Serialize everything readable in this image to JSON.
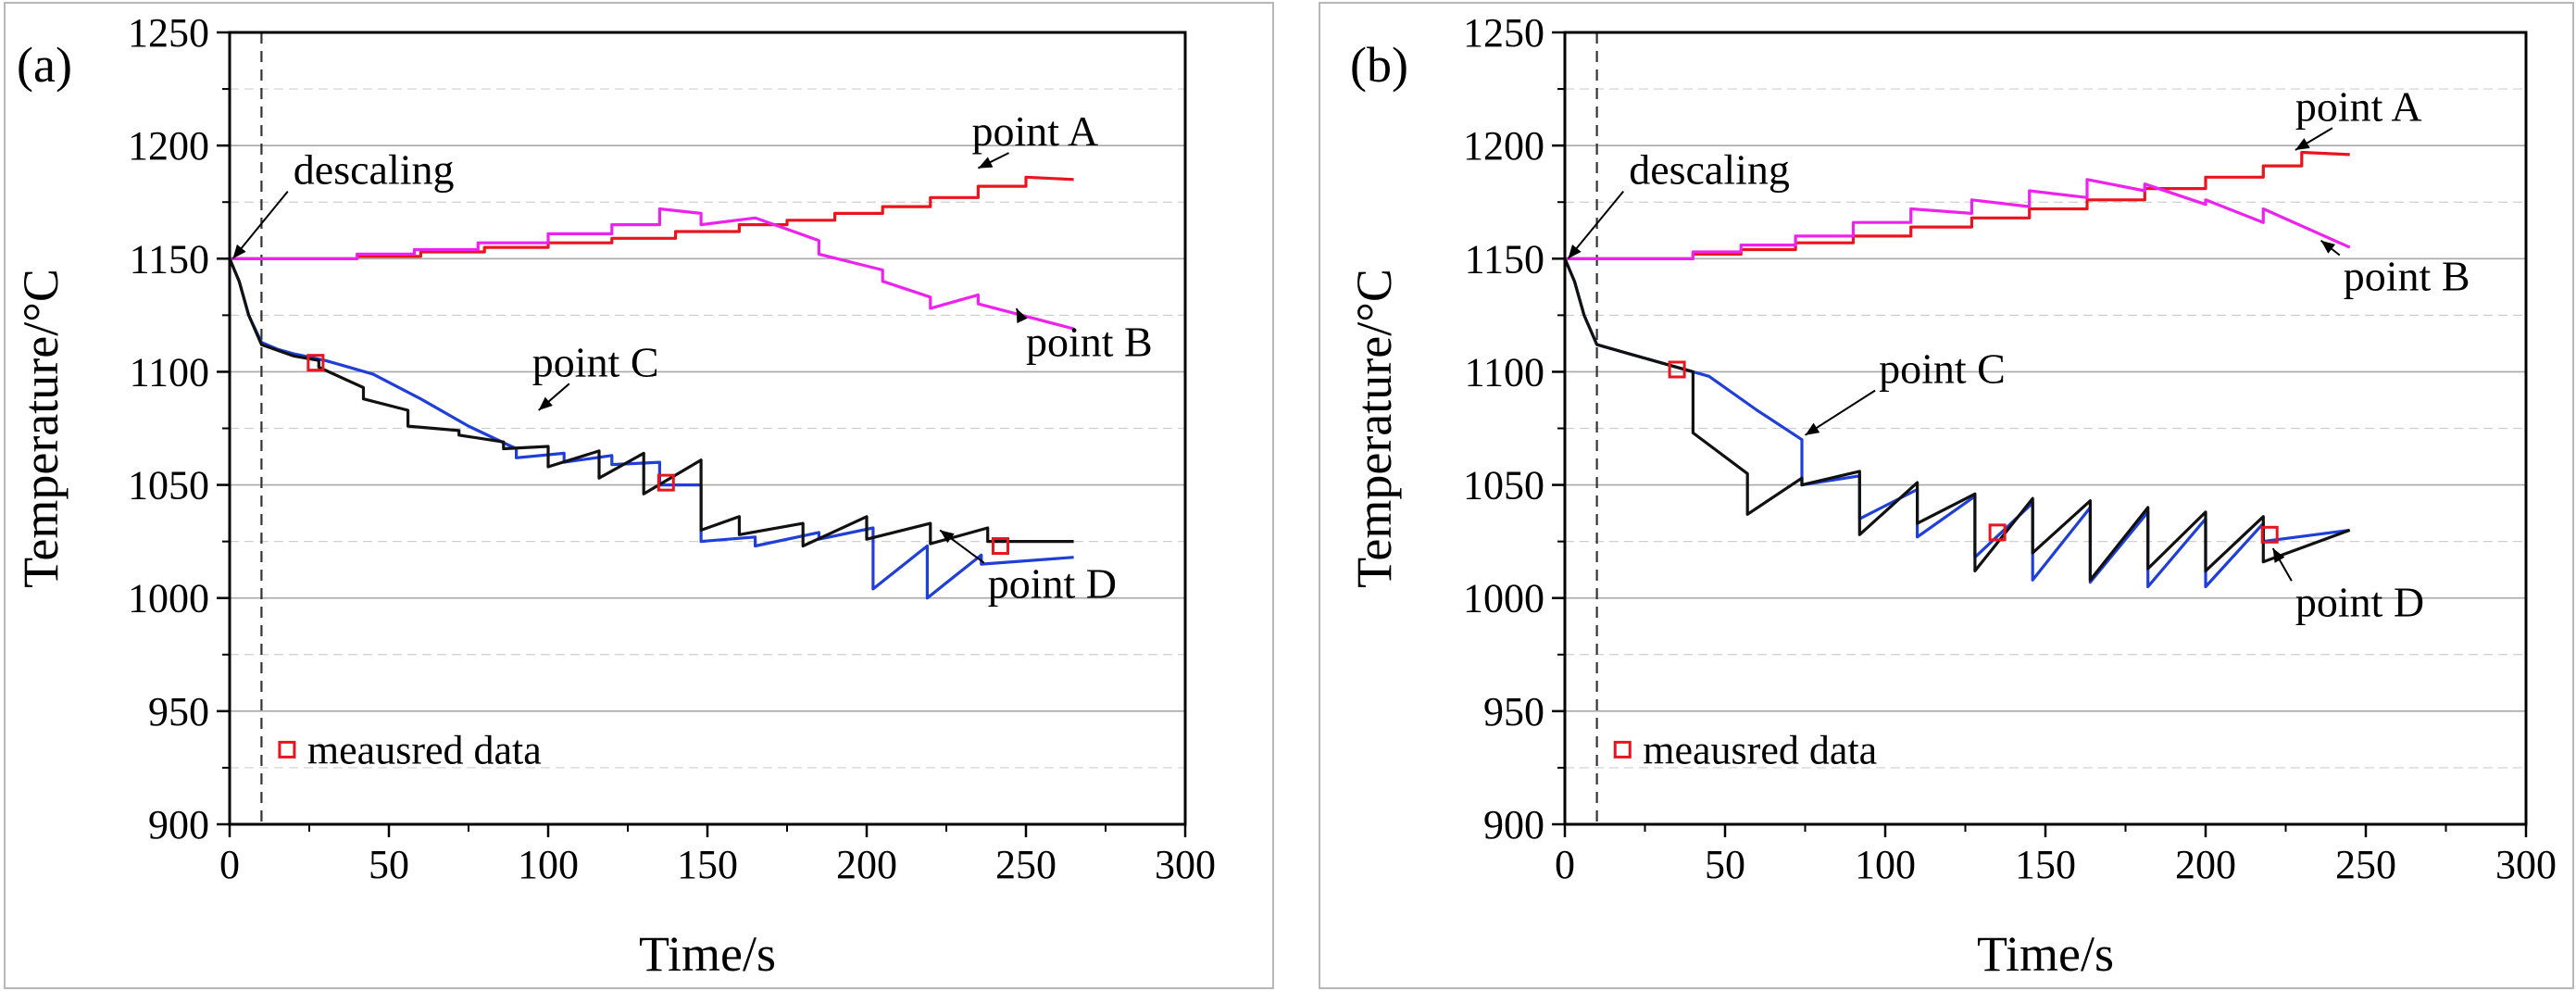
{
  "chart_data": [
    {
      "type": "line",
      "panel_label": "(a)",
      "xlabel": "Time/s",
      "ylabel": "Temperature/°C",
      "xlim": [
        0,
        300
      ],
      "ylim": [
        900,
        1250
      ],
      "xticks": [
        0,
        50,
        100,
        150,
        200,
        250,
        300
      ],
      "yticks": [
        900,
        950,
        1000,
        1050,
        1100,
        1150,
        1200,
        1250
      ],
      "grid": "horizontal",
      "descaling_time": 10,
      "annotations": [
        {
          "text": "descaling",
          "x": 1,
          "y": 1150,
          "tx": 20,
          "ty": 1183
        },
        {
          "text": "point A",
          "x": 235,
          "y": 1190,
          "tx": 233,
          "ty": 1200
        },
        {
          "text": "point B",
          "x": 247,
          "y": 1128,
          "tx": 250,
          "ty": 1107
        },
        {
          "text": "point C",
          "x": 97,
          "y": 1083,
          "tx": 95,
          "ty": 1098
        },
        {
          "text": "point D",
          "x": 223,
          "y": 1030,
          "tx": 238,
          "ty": 1000
        }
      ],
      "legend": {
        "label": "meausred data",
        "position": "lower-left"
      },
      "series": [
        {
          "name": "point A",
          "color": "#e8141e",
          "x": [
            0,
            40,
            40,
            60,
            60,
            80,
            80,
            100,
            100,
            120,
            120,
            140,
            140,
            160,
            160,
            175,
            175,
            190,
            190,
            205,
            205,
            220,
            220,
            235,
            235,
            250,
            250,
            265
          ],
          "y": [
            1150,
            1150,
            1151,
            1151,
            1153,
            1153,
            1155,
            1155,
            1157,
            1157,
            1159,
            1159,
            1162,
            1162,
            1165,
            1165,
            1167,
            1167,
            1170,
            1170,
            1173,
            1173,
            1177,
            1177,
            1182,
            1182,
            1186,
            1185
          ]
        },
        {
          "name": "point B",
          "color": "#ee22ee",
          "x": [
            0,
            40,
            40,
            58,
            58,
            78,
            78,
            100,
            100,
            120,
            120,
            135,
            135,
            148,
            148,
            165,
            185,
            185,
            205,
            205,
            220,
            220,
            235,
            235,
            265
          ],
          "y": [
            1150,
            1150,
            1152,
            1152,
            1154,
            1154,
            1157,
            1157,
            1161,
            1161,
            1165,
            1165,
            1172,
            1170,
            1165,
            1168,
            1158,
            1152,
            1145,
            1140,
            1133,
            1128,
            1134,
            1130,
            1119
          ]
        },
        {
          "name": "point C",
          "color": "#1f3fd8",
          "x": [
            0,
            3,
            6,
            10,
            15,
            20,
            30,
            45,
            60,
            75,
            90,
            90,
            105,
            105,
            120,
            120,
            135,
            135,
            148,
            148,
            165,
            165,
            185,
            185,
            202,
            202,
            219,
            219,
            236,
            236,
            265
          ],
          "y": [
            1150,
            1140,
            1125,
            1113,
            1110,
            1108,
            1105,
            1099,
            1088,
            1076,
            1066,
            1062,
            1064,
            1060,
            1063,
            1059,
            1060,
            1050,
            1050,
            1025,
            1027,
            1023,
            1029,
            1026,
            1031,
            1004,
            1023,
            1000,
            1019,
            1015,
            1018
          ]
        },
        {
          "name": "point D",
          "color": "#111111",
          "x": [
            0,
            3,
            6,
            10,
            20,
            28,
            28,
            42,
            42,
            56,
            56,
            72,
            72,
            86,
            86,
            100,
            100,
            116,
            116,
            130,
            130,
            148,
            148,
            160,
            160,
            180,
            180,
            200,
            200,
            220,
            220,
            238,
            238,
            265
          ],
          "y": [
            1150,
            1140,
            1125,
            1112,
            1107,
            1105,
            1102,
            1093,
            1088,
            1083,
            1076,
            1074,
            1072,
            1069,
            1066,
            1067,
            1058,
            1065,
            1053,
            1064,
            1046,
            1061,
            1030,
            1036,
            1028,
            1033,
            1023,
            1036,
            1026,
            1033,
            1024,
            1031,
            1025,
            1025
          ]
        }
      ],
      "measured": {
        "x": [
          27,
          137,
          242
        ],
        "y": [
          1104,
          1051,
          1023
        ]
      }
    },
    {
      "type": "line",
      "panel_label": "(b)",
      "xlabel": "Time/s",
      "ylabel": "Temperature/°C",
      "xlim": [
        0,
        300
      ],
      "ylim": [
        900,
        1250
      ],
      "xticks": [
        0,
        50,
        100,
        150,
        200,
        250,
        300
      ],
      "yticks": [
        900,
        950,
        1000,
        1050,
        1100,
        1150,
        1200,
        1250
      ],
      "grid": "horizontal",
      "descaling_time": 10,
      "annotations": [
        {
          "text": "descaling",
          "x": 1,
          "y": 1150,
          "tx": 20,
          "ty": 1183
        },
        {
          "text": "point A",
          "x": 228,
          "y": 1198,
          "tx": 228,
          "ty": 1211
        },
        {
          "text": "point B",
          "x": 236,
          "y": 1158,
          "tx": 243,
          "ty": 1136
        },
        {
          "text": "point C",
          "x": 75,
          "y": 1072,
          "tx": 98,
          "ty": 1095
        },
        {
          "text": "point D",
          "x": 221,
          "y": 1022,
          "tx": 228,
          "ty": 992
        }
      ],
      "legend": {
        "label": "meausred data",
        "position": "lower-left"
      },
      "series": [
        {
          "name": "point A",
          "color": "#e8141e",
          "x": [
            0,
            40,
            40,
            55,
            55,
            72,
            72,
            90,
            90,
            108,
            108,
            127,
            127,
            145,
            145,
            163,
            163,
            181,
            181,
            200,
            200,
            218,
            218,
            230,
            230,
            245
          ],
          "y": [
            1150,
            1150,
            1152,
            1152,
            1154,
            1154,
            1157,
            1157,
            1160,
            1160,
            1164,
            1164,
            1168,
            1168,
            1172,
            1172,
            1176,
            1176,
            1181,
            1181,
            1186,
            1186,
            1191,
            1191,
            1197,
            1196
          ]
        },
        {
          "name": "point B",
          "color": "#ee22ee",
          "x": [
            0,
            40,
            40,
            55,
            55,
            72,
            72,
            90,
            90,
            108,
            108,
            127,
            127,
            145,
            145,
            163,
            163,
            181,
            181,
            200,
            200,
            218,
            218,
            245
          ],
          "y": [
            1150,
            1150,
            1153,
            1153,
            1156,
            1156,
            1160,
            1160,
            1166,
            1166,
            1172,
            1170,
            1176,
            1173,
            1180,
            1177,
            1185,
            1180,
            1183,
            1174,
            1176,
            1166,
            1172,
            1155
          ]
        },
        {
          "name": "point C",
          "color": "#1f3fd8",
          "x": [
            0,
            3,
            6,
            10,
            20,
            30,
            45,
            60,
            74,
            74,
            92,
            92,
            110,
            110,
            128,
            128,
            146,
            146,
            164,
            164,
            182,
            182,
            200,
            200,
            218,
            218,
            245
          ],
          "y": [
            1150,
            1140,
            1125,
            1112,
            1108,
            1104,
            1098,
            1083,
            1070,
            1050,
            1054,
            1035,
            1048,
            1027,
            1045,
            1018,
            1042,
            1008,
            1040,
            1007,
            1038,
            1005,
            1035,
            1005,
            1033,
            1025,
            1030
          ]
        },
        {
          "name": "point D",
          "color": "#111111",
          "x": [
            0,
            3,
            6,
            10,
            20,
            30,
            40,
            40,
            57,
            57,
            74,
            74,
            92,
            92,
            110,
            110,
            128,
            128,
            146,
            146,
            164,
            164,
            182,
            182,
            200,
            200,
            218,
            218,
            245
          ],
          "y": [
            1150,
            1140,
            1125,
            1112,
            1108,
            1104,
            1100,
            1073,
            1055,
            1037,
            1053,
            1050,
            1056,
            1028,
            1051,
            1033,
            1046,
            1012,
            1044,
            1020,
            1043,
            1008,
            1040,
            1013,
            1038,
            1012,
            1036,
            1016,
            1030
          ]
        }
      ],
      "measured": {
        "x": [
          35,
          135,
          220
        ],
        "y": [
          1101,
          1029,
          1028
        ]
      }
    }
  ]
}
